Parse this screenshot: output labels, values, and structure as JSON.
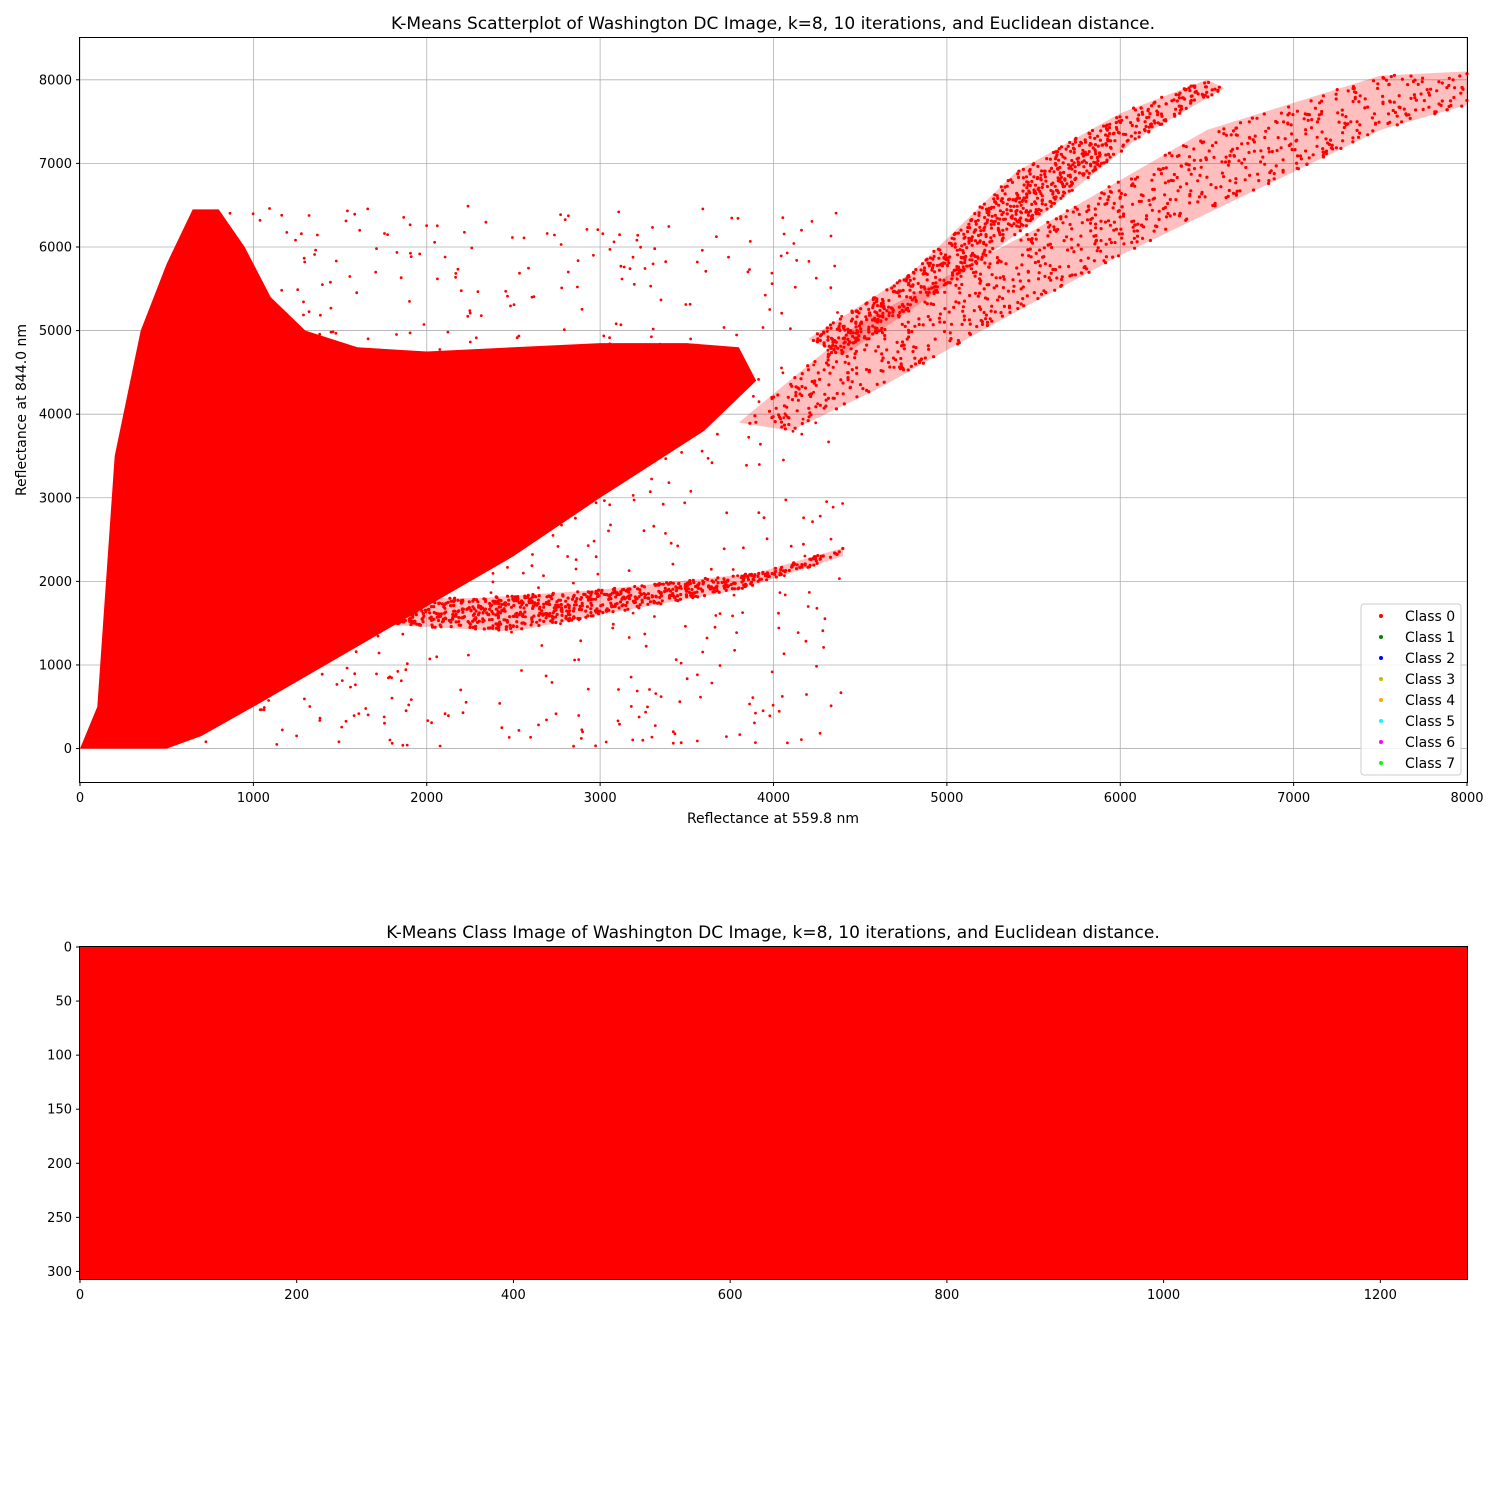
{
  "chart_data": [
    {
      "type": "scatter",
      "title": "K-Means Scatterplot of Washington DC Image, k=8, 10 iterations, and Euclidean distance.",
      "xlabel": "Reflectance at 559.8 nm",
      "ylabel": "Reflectance at 844.0 nm",
      "xlim": [
        0,
        8000
      ],
      "ylim": [
        -400,
        8500
      ],
      "xticks": [
        0,
        1000,
        2000,
        3000,
        4000,
        5000,
        6000,
        7000,
        8000
      ],
      "yticks": [
        0,
        1000,
        2000,
        3000,
        4000,
        5000,
        6000,
        7000,
        8000
      ],
      "grid": true,
      "legend_position": "lower-right",
      "series": [
        {
          "name": "Class 0",
          "color": "#ff0000",
          "regions": [
            {
              "shape": "dense-cloud",
              "vertices": [
                [
                  0,
                  0
                ],
                [
                  100,
                  500
                ],
                [
                  200,
                  3500
                ],
                [
                  350,
                  5000
                ],
                [
                  500,
                  5800
                ],
                [
                  650,
                  6450
                ],
                [
                  800,
                  6450
                ],
                [
                  950,
                  6000
                ],
                [
                  1100,
                  5400
                ],
                [
                  1300,
                  5000
                ],
                [
                  1600,
                  4800
                ],
                [
                  2000,
                  4750
                ],
                [
                  2500,
                  4800
                ],
                [
                  3000,
                  4850
                ],
                [
                  3500,
                  4850
                ],
                [
                  3800,
                  4800
                ],
                [
                  3900,
                  4400
                ],
                [
                  3600,
                  3800
                ],
                [
                  3000,
                  3000
                ],
                [
                  2500,
                  2300
                ],
                [
                  2000,
                  1700
                ],
                [
                  1500,
                  1100
                ],
                [
                  1000,
                  500
                ],
                [
                  700,
                  150
                ],
                [
                  500,
                  0
                ]
              ]
            },
            {
              "shape": "sparse-band",
              "vertices": [
                [
                  1600,
                  1500
                ],
                [
                  2500,
                  1400
                ],
                [
                  3000,
                  1600
                ],
                [
                  3800,
                  1900
                ],
                [
                  4400,
                  2300
                ],
                [
                  4400,
                  2400
                ],
                [
                  3900,
                  2100
                ],
                [
                  3000,
                  1900
                ],
                [
                  2300,
                  1800
                ],
                [
                  1700,
                  1800
                ]
              ]
            },
            {
              "shape": "sparse-band",
              "vertices": [
                [
                  3800,
                  3900
                ],
                [
                  4500,
                  5100
                ],
                [
                  5500,
                  6200
                ],
                [
                  6500,
                  7400
                ],
                [
                  7500,
                  8050
                ],
                [
                  8000,
                  8100
                ],
                [
                  8000,
                  7700
                ],
                [
                  7500,
                  7400
                ],
                [
                  6800,
                  6700
                ],
                [
                  6000,
                  5900
                ],
                [
                  5200,
                  5000
                ],
                [
                  4600,
                  4300
                ],
                [
                  4100,
                  3800
                ]
              ]
            },
            {
              "shape": "sparse-band",
              "vertices": [
                [
                  4200,
                  4900
                ],
                [
                  4800,
                  5700
                ],
                [
                  5400,
                  6900
                ],
                [
                  6000,
                  7600
                ],
                [
                  6500,
                  8000
                ],
                [
                  6600,
                  7900
                ],
                [
                  6100,
                  7300
                ],
                [
                  5500,
                  6300
                ],
                [
                  4900,
                  5400
                ],
                [
                  4400,
                  4700
                ]
              ]
            }
          ]
        },
        {
          "name": "Class 1",
          "color": "#008000"
        },
        {
          "name": "Class 2",
          "color": "#0000ff"
        },
        {
          "name": "Class 3",
          "color": "#bfbf00"
        },
        {
          "name": "Class 4",
          "color": "#ffa500"
        },
        {
          "name": "Class 5",
          "color": "#00ffff"
        },
        {
          "name": "Class 6",
          "color": "#ff00ff"
        },
        {
          "name": "Class 7",
          "color": "#00ff00"
        }
      ]
    },
    {
      "type": "heatmap",
      "title": "K-Means Class Image of Washington DC Image, k=8, 10 iterations, and Euclidean distance.",
      "xlim": [
        0,
        1280
      ],
      "ylim": [
        307,
        0
      ],
      "xticks": [
        0,
        200,
        400,
        600,
        800,
        1000,
        1200
      ],
      "yticks": [
        0,
        50,
        100,
        150,
        200,
        250,
        300
      ],
      "values": "all pixels Class 0",
      "color": "#ff0000"
    }
  ]
}
